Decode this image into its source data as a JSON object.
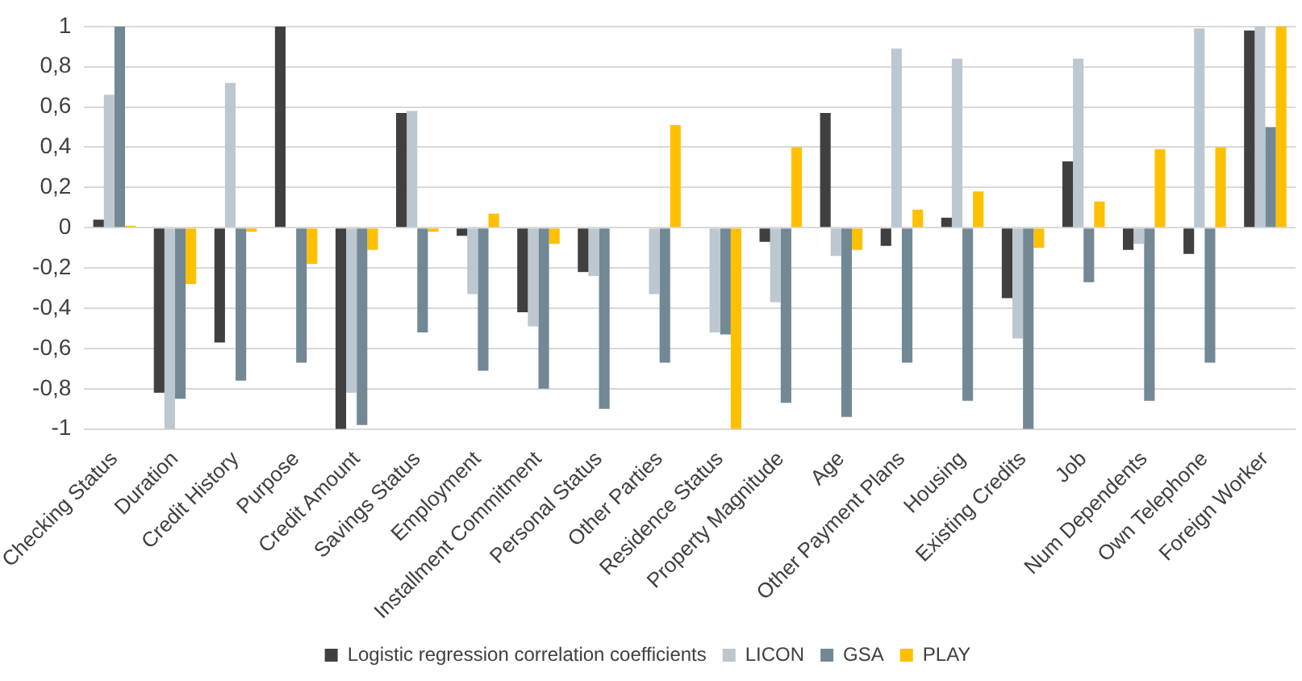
{
  "chart_data": {
    "type": "bar",
    "categories": [
      "Checking Status",
      "Duration",
      "Credit History",
      "Purpose",
      "Credit Amount",
      "Savings Status",
      "Employment",
      "Installment Commitment",
      "Personal Status",
      "Other Parties",
      "Residence Status",
      "Property Magnitude",
      "Age",
      "Other Payment Plans",
      "Housing",
      "Existing Credits",
      "Job",
      "Num Dependents",
      "Own Telephone",
      "Foreign Worker"
    ],
    "series": [
      {
        "name": "Logistic regression correlation coefficients",
        "color": "#404040",
        "values": [
          0.04,
          -0.82,
          -0.57,
          1,
          -1,
          0.57,
          -0.04,
          -0.42,
          -0.22,
          0,
          0,
          -0.07,
          0.57,
          -0.09,
          0.05,
          -0.35,
          0.33,
          -0.11,
          -0.13,
          0.98
        ]
      },
      {
        "name": "LICON",
        "color": "#bdc7cf",
        "values": [
          0.66,
          -1,
          0.72,
          0,
          -0.82,
          0.58,
          -0.33,
          -0.49,
          -0.24,
          -0.33,
          -0.52,
          -0.37,
          -0.14,
          0.89,
          0.84,
          -0.55,
          0.84,
          -0.08,
          0.99,
          1
        ]
      },
      {
        "name": "GSA",
        "color": "#738895",
        "values": [
          1,
          -0.85,
          -0.76,
          -0.67,
          -0.98,
          -0.52,
          -0.71,
          -0.8,
          -0.9,
          -0.67,
          -0.53,
          -0.87,
          -0.94,
          -0.67,
          -0.86,
          -1,
          -0.27,
          -0.86,
          -0.67,
          0.5
        ]
      },
      {
        "name": "PLAY",
        "color": "#ffc000",
        "values": [
          0.01,
          -0.28,
          -0.02,
          -0.18,
          -0.11,
          -0.02,
          0.07,
          -0.08,
          0,
          0.51,
          -1,
          0.4,
          -0.11,
          0.09,
          0.18,
          -0.1,
          0.13,
          0.39,
          0.4,
          1
        ]
      }
    ],
    "ylim": [
      -1,
      1
    ],
    "yticks": [
      {
        "value": -1,
        "label": "-1"
      },
      {
        "value": -0.8,
        "label": "-0,8"
      },
      {
        "value": -0.6,
        "label": "-0,6"
      },
      {
        "value": -0.4,
        "label": "-0,4"
      },
      {
        "value": -0.2,
        "label": "-0,2"
      },
      {
        "value": 0,
        "label": "0"
      },
      {
        "value": 0.2,
        "label": "0,2"
      },
      {
        "value": 0.4,
        "label": "0,4"
      },
      {
        "value": 0.6,
        "label": "0,6"
      },
      {
        "value": 0.8,
        "label": "0,8"
      },
      {
        "value": 1,
        "label": "1"
      }
    ],
    "grid": "y",
    "legend": "bottom"
  }
}
